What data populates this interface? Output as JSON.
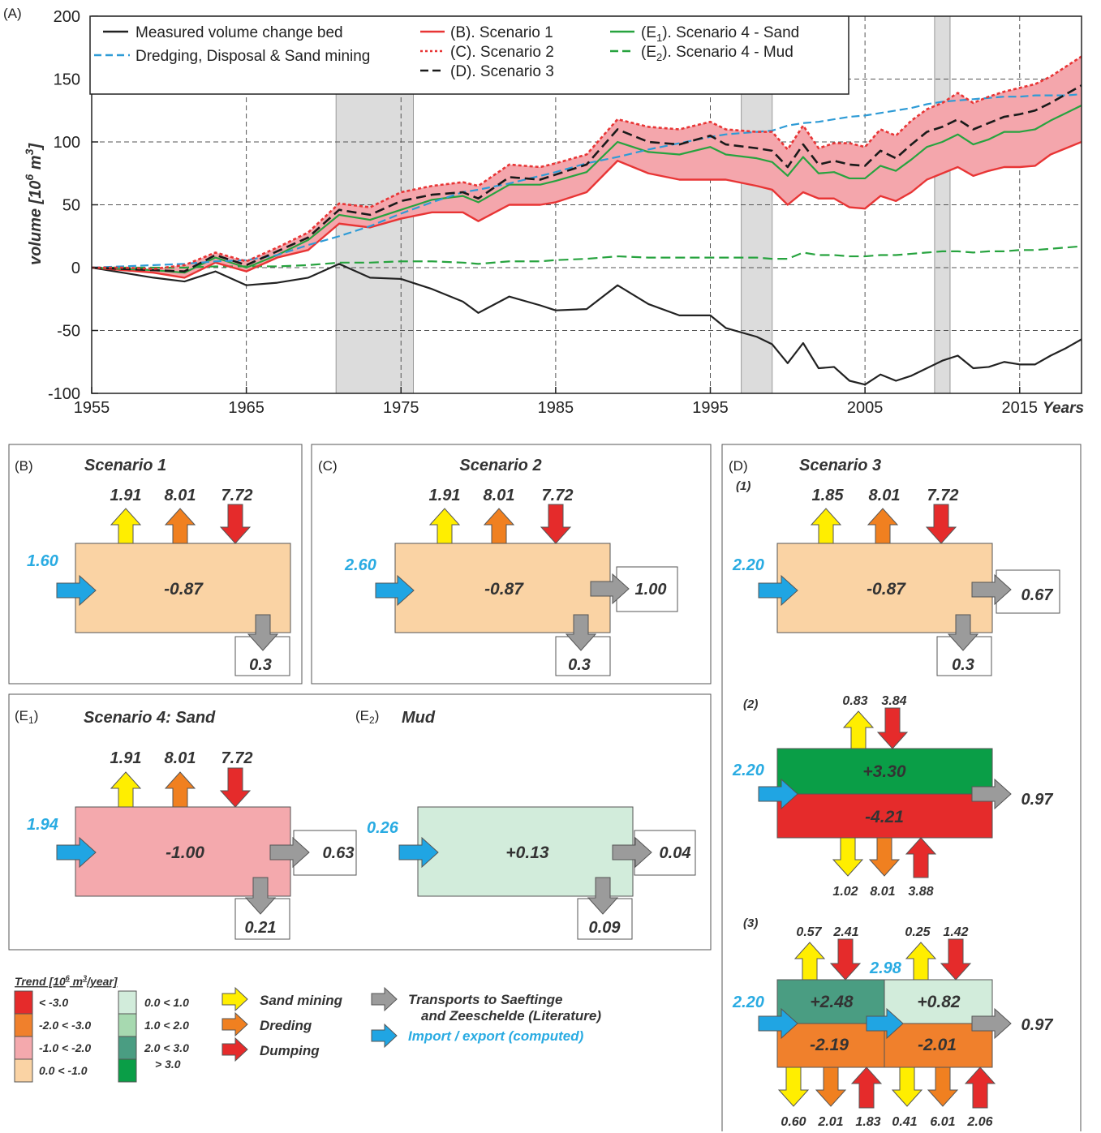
{
  "colors": {
    "measured": "#222222",
    "dredging": "#2e9bd6",
    "scenario1": "#e83535",
    "scenario2": "#e83535",
    "scenario3": "#1a1a1a",
    "sand": "#27a33f",
    "mud": "#27a33f",
    "band": "#f4a6ac",
    "shade": "#dcdcdc",
    "sandmining": "#ffee00",
    "dredging_arrow": "#f08020",
    "dumping": "#e52b2b",
    "transport": "#9b9b9b",
    "import": "#20a5e3",
    "trend_red": "#e52b2b",
    "trend_orange": "#f0802c",
    "trend_pink": "#f4a9ad",
    "trend_peach": "#fad3a4",
    "trend_g1": "#d2ecdb",
    "trend_g2": "#a7d9b0",
    "trend_g3": "#4a9d82",
    "trend_g4": "#0a9e47"
  },
  "chart_data": {
    "type": "line",
    "panel_label": "(A)",
    "ylabel": "volume [10^6 m^3]",
    "ylabel_main": "volume [10",
    "ylabel_exp6": "6",
    "ylabel_m": " m",
    "ylabel_exp3": "3",
    "ylabel_end": "]",
    "xlabel": "Years",
    "xlim": [
      1955,
      2019
    ],
    "ylim": [
      -100,
      200
    ],
    "xticks": [
      1955,
      1965,
      1975,
      1985,
      1995,
      2005,
      2015
    ],
    "yticks": [
      -100,
      -50,
      0,
      50,
      100,
      150,
      200
    ],
    "grid": true,
    "legend_position": "top",
    "shaded_periods": [
      [
        1970.8,
        1975.8
      ],
      [
        1997.0,
        1999.0
      ],
      [
        2009.5,
        2010.5
      ]
    ],
    "x": [
      1955,
      1957,
      1959,
      1961,
      1963,
      1965,
      1967,
      1969,
      1971,
      1973,
      1975,
      1977,
      1979,
      1980,
      1982,
      1984,
      1985,
      1987,
      1989,
      1991,
      1993,
      1995,
      1996,
      1998,
      1999,
      2000,
      2001,
      2002,
      2003,
      2004,
      2005,
      2006,
      2007,
      2008,
      2009,
      2010,
      2011,
      2012,
      2013,
      2014,
      2015,
      2016,
      2017,
      2018,
      2019
    ],
    "series": [
      {
        "name": "Measured volume change bed",
        "values": [
          0,
          -4,
          -8,
          -11,
          -3,
          -14,
          -12,
          -8,
          3,
          -8,
          -9,
          -17,
          -27,
          -36,
          -23,
          -30,
          -34,
          -33,
          -14,
          -29,
          -38,
          -38,
          -48,
          -55,
          -61,
          -76,
          -60,
          -80,
          -79,
          -90,
          -93,
          -85,
          -90,
          -86,
          -80,
          -74,
          -70,
          -80,
          -79,
          -75,
          -77,
          -77,
          -70,
          -64,
          -57
        ]
      },
      {
        "name": "Dredging, Disposal & Sand mining",
        "values": [
          0,
          1,
          2,
          3,
          5,
          6,
          10,
          18,
          25,
          33,
          43,
          52,
          60,
          62,
          67,
          73,
          76,
          83,
          88,
          94,
          99,
          104,
          106,
          108,
          109,
          113,
          115,
          116,
          118,
          120,
          121,
          123,
          125,
          127,
          130,
          132,
          133,
          134,
          135,
          136,
          136,
          137,
          137,
          137,
          138
        ]
      },
      {
        "name": "(B). Scenario 1",
        "values": [
          0,
          -2,
          -4,
          -8,
          4,
          -3,
          8,
          14,
          35,
          32,
          39,
          44,
          44,
          37,
          50,
          50,
          52,
          60,
          85,
          75,
          70,
          70,
          70,
          65,
          62,
          50,
          60,
          55,
          55,
          48,
          47,
          57,
          53,
          60,
          70,
          75,
          80,
          73,
          77,
          80,
          80,
          81,
          90,
          95,
          100
        ]
      },
      {
        "name": "(C). Scenario 2",
        "values": [
          0,
          0,
          -1,
          2,
          12,
          5,
          16,
          28,
          51,
          48,
          60,
          65,
          68,
          65,
          82,
          80,
          83,
          90,
          118,
          112,
          110,
          116,
          110,
          108,
          108,
          94,
          113,
          95,
          99,
          99,
          96,
          110,
          105,
          117,
          126,
          131,
          139,
          131,
          136,
          140,
          143,
          146,
          152,
          160,
          168
        ]
      },
      {
        "name": "(D). Scenario 3",
        "values": [
          0,
          -1,
          -2,
          -3,
          10,
          2,
          13,
          24,
          46,
          42,
          53,
          58,
          60,
          55,
          72,
          70,
          74,
          82,
          110,
          100,
          98,
          105,
          98,
          95,
          93,
          80,
          98,
          82,
          85,
          82,
          81,
          93,
          87,
          98,
          108,
          112,
          118,
          110,
          115,
          120,
          122,
          125,
          131,
          138,
          145
        ]
      },
      {
        "name": "(E1). Scenario 4 - Sand",
        "values": [
          0,
          -1,
          -2,
          -4,
          8,
          0,
          10,
          22,
          42,
          38,
          46,
          54,
          57,
          52,
          66,
          66,
          69,
          76,
          100,
          92,
          90,
          96,
          90,
          87,
          84,
          73,
          88,
          75,
          76,
          71,
          71,
          81,
          77,
          86,
          96,
          100,
          106,
          98,
          102,
          108,
          108,
          110,
          117,
          123,
          129
        ]
      },
      {
        "name": "(E2). Scenario 4 - Mud",
        "values": [
          0,
          0,
          0,
          0,
          1,
          1,
          1,
          2,
          4,
          4,
          5,
          5,
          4,
          3,
          5,
          5,
          6,
          7,
          9,
          8,
          8,
          8,
          8,
          8,
          7,
          7,
          12,
          10,
          10,
          9,
          9,
          10,
          10,
          11,
          12,
          13,
          13,
          12,
          13,
          13,
          14,
          14,
          15,
          16,
          17
        ]
      }
    ]
  },
  "legend": {
    "measured": "Measured volume change bed",
    "dredging": "Dredging, Disposal & Sand mining",
    "s1": "(B). Scenario 1",
    "s2": "(C). Scenario 2",
    "s3": "(D). Scenario 3",
    "sand_pre": "(E",
    "sand_sub": "1",
    "sand_post": "). Scenario 4 - Sand",
    "mud_pre": "(E",
    "mud_sub": "2",
    "mud_post": "). Scenario 4 - Mud"
  },
  "panels": {
    "b": {
      "label": "(B)",
      "title": "Scenario 1",
      "mining": "1.91",
      "dredging": "8.01",
      "dumping": "7.72",
      "import": "1.60",
      "box": "-0.87",
      "down": "0.3"
    },
    "c": {
      "label": "(C)",
      "title": "Scenario 2",
      "mining": "1.91",
      "dredging": "8.01",
      "dumping": "7.72",
      "import": "2.60",
      "box": "-0.87",
      "right": "1.00",
      "down": "0.3"
    },
    "d": {
      "label": "(D)",
      "title": "Scenario 3",
      "d1": {
        "label": "(1)",
        "mining": "1.85",
        "dredging": "8.01",
        "dumping": "7.72",
        "import": "2.20",
        "box": "-0.87",
        "right": "0.67",
        "down": "0.3"
      },
      "d2": {
        "label": "(2)",
        "top_mining": "0.83",
        "top_dumping": "3.84",
        "import": "2.20",
        "top_box": "+3.30",
        "bottom_box": "-4.21",
        "right": "0.97",
        "b_mining": "1.02",
        "b_dredging": "8.01",
        "b_dumping": "3.88"
      },
      "d3": {
        "label": "(3)",
        "tl_mining": "0.57",
        "tl_dumping": "2.41",
        "tr_mining": "0.25",
        "tr_dumping": "1.42",
        "mid_import": "2.98",
        "import": "2.20",
        "box_tl": "+2.48",
        "box_tr": "+0.82",
        "box_bl": "-2.19",
        "box_br": "-2.01",
        "right": "0.97",
        "bl_mining": "0.60",
        "bl_dredging": "2.01",
        "bl_dumping": "1.83",
        "br_mining": "0.41",
        "br_dredging": "6.01",
        "br_dumping": "2.06"
      }
    },
    "e1": {
      "label_pre": "(E",
      "label_sub": "1",
      "label_post": ")",
      "title": "Scenario 4: Sand",
      "mining": "1.91",
      "dredging": "8.01",
      "dumping": "7.72",
      "import": "1.94",
      "box": "-1.00",
      "right": "0.63",
      "down": "0.21"
    },
    "e2": {
      "label_pre": "(E",
      "label_sub": "2",
      "label_post": ")",
      "title": "Mud",
      "import": "0.26",
      "box": "+0.13",
      "right": "0.04",
      "down": "0.09"
    }
  },
  "trend_legend": {
    "title_pre": "Trend [10",
    "title_exp": "6",
    "title_mid": " m",
    "title_exp2": "3",
    "title_post": "/year]",
    "items_left": [
      "< -3.0",
      "-2.0 < -3.0",
      "-1.0 < -2.0",
      "0.0 < -1.0"
    ],
    "items_right": [
      "0.0 < 1.0",
      "1.0 < 2.0",
      "2.0 < 3.0",
      "> 3.0"
    ]
  },
  "arrow_legend": {
    "mining": "Sand mining",
    "dredging": "Dreding",
    "dumping": "Dumping",
    "transport_line1": "Transports to Saeftinge",
    "transport_line2": "and Zeeschelde (Literature)",
    "import": "Import / export  (computed)"
  }
}
